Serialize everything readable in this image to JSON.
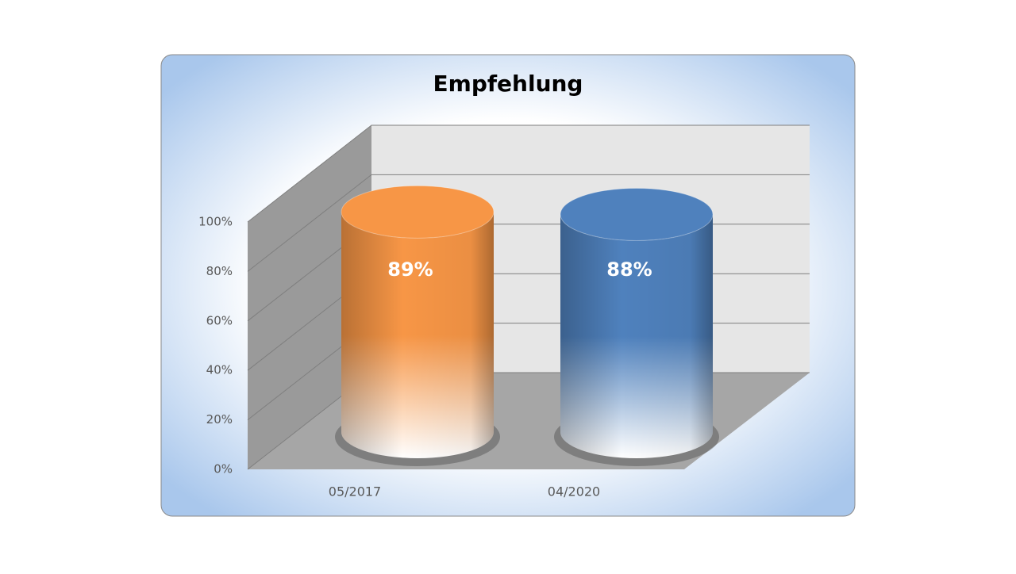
{
  "chart_data": {
    "type": "bar3d-cylinder",
    "title": "Empfehlung",
    "categories": [
      "05/2017",
      "04/2020"
    ],
    "values": [
      89,
      88
    ],
    "value_labels": [
      "89%",
      "88%"
    ],
    "colors": [
      "#f79646",
      "#4f81bd"
    ],
    "ylim": [
      0,
      100
    ],
    "yticks": [
      {
        "value": 0,
        "label": "0%"
      },
      {
        "value": 20,
        "label": "20%"
      },
      {
        "value": 40,
        "label": "40%"
      },
      {
        "value": 60,
        "label": "60%"
      },
      {
        "value": 80,
        "label": "80%"
      },
      {
        "value": 100,
        "label": "100%"
      }
    ],
    "grid": true
  }
}
